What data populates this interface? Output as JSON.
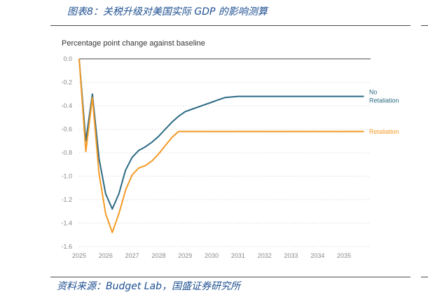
{
  "figure": {
    "title": "图表8：关税升级对美国实际 GDP 的影响测算",
    "source": "资料来源：Budget Lab，国盛证券研究所"
  },
  "chart_data": {
    "type": "line",
    "title": "Percentage point change against baseline",
    "xlabel": "",
    "ylabel": "",
    "xlim": [
      2025,
      2036
    ],
    "ylim": [
      -1.6,
      0
    ],
    "x_ticks": [
      "2025",
      "2026",
      "2027",
      "2028",
      "2029",
      "2030",
      "2031",
      "2032",
      "2033",
      "2034",
      "2035"
    ],
    "y_ticks": [
      "0.0",
      "-0.2",
      "-0.4",
      "-0.6",
      "-0.8",
      "-1.0",
      "-1.2",
      "-1.4",
      "-1.6"
    ],
    "grid": "horizontal dotted",
    "series": [
      {
        "name": "No Retaliation",
        "label_lines": [
          "No",
          "Retaliation"
        ],
        "color": "#2b6a84",
        "x": [
          2025.0,
          2025.25,
          2025.5,
          2025.75,
          2026.0,
          2026.25,
          2026.5,
          2026.75,
          2027.0,
          2027.25,
          2027.5,
          2027.75,
          2028.0,
          2028.25,
          2028.5,
          2028.75,
          2029.0,
          2029.25,
          2029.5,
          2029.75,
          2030.0,
          2030.25,
          2030.5,
          2031.0,
          2032.0,
          2033.0,
          2034.0,
          2035.0,
          2035.75
        ],
        "y": [
          0.0,
          -0.7,
          -0.3,
          -0.85,
          -1.15,
          -1.28,
          -1.15,
          -0.95,
          -0.84,
          -0.78,
          -0.75,
          -0.71,
          -0.66,
          -0.6,
          -0.54,
          -0.49,
          -0.45,
          -0.43,
          -0.41,
          -0.39,
          -0.37,
          -0.35,
          -0.33,
          -0.32,
          -0.32,
          -0.32,
          -0.32,
          -0.32,
          -0.32
        ]
      },
      {
        "name": "Retaliation",
        "label_lines": [
          "Retaliation"
        ],
        "color": "#f39b26",
        "x": [
          2025.0,
          2025.25,
          2025.5,
          2025.75,
          2026.0,
          2026.25,
          2026.5,
          2026.75,
          2027.0,
          2027.25,
          2027.5,
          2027.75,
          2028.0,
          2028.25,
          2028.5,
          2028.75,
          2029.0,
          2029.5,
          2030.0,
          2031.0,
          2032.0,
          2033.0,
          2034.0,
          2035.0,
          2035.75
        ],
        "y": [
          0.0,
          -0.79,
          -0.33,
          -0.98,
          -1.32,
          -1.48,
          -1.32,
          -1.12,
          -0.99,
          -0.93,
          -0.91,
          -0.87,
          -0.81,
          -0.74,
          -0.67,
          -0.62,
          -0.62,
          -0.62,
          -0.62,
          -0.62,
          -0.62,
          -0.62,
          -0.62,
          -0.62,
          -0.62
        ]
      }
    ]
  }
}
